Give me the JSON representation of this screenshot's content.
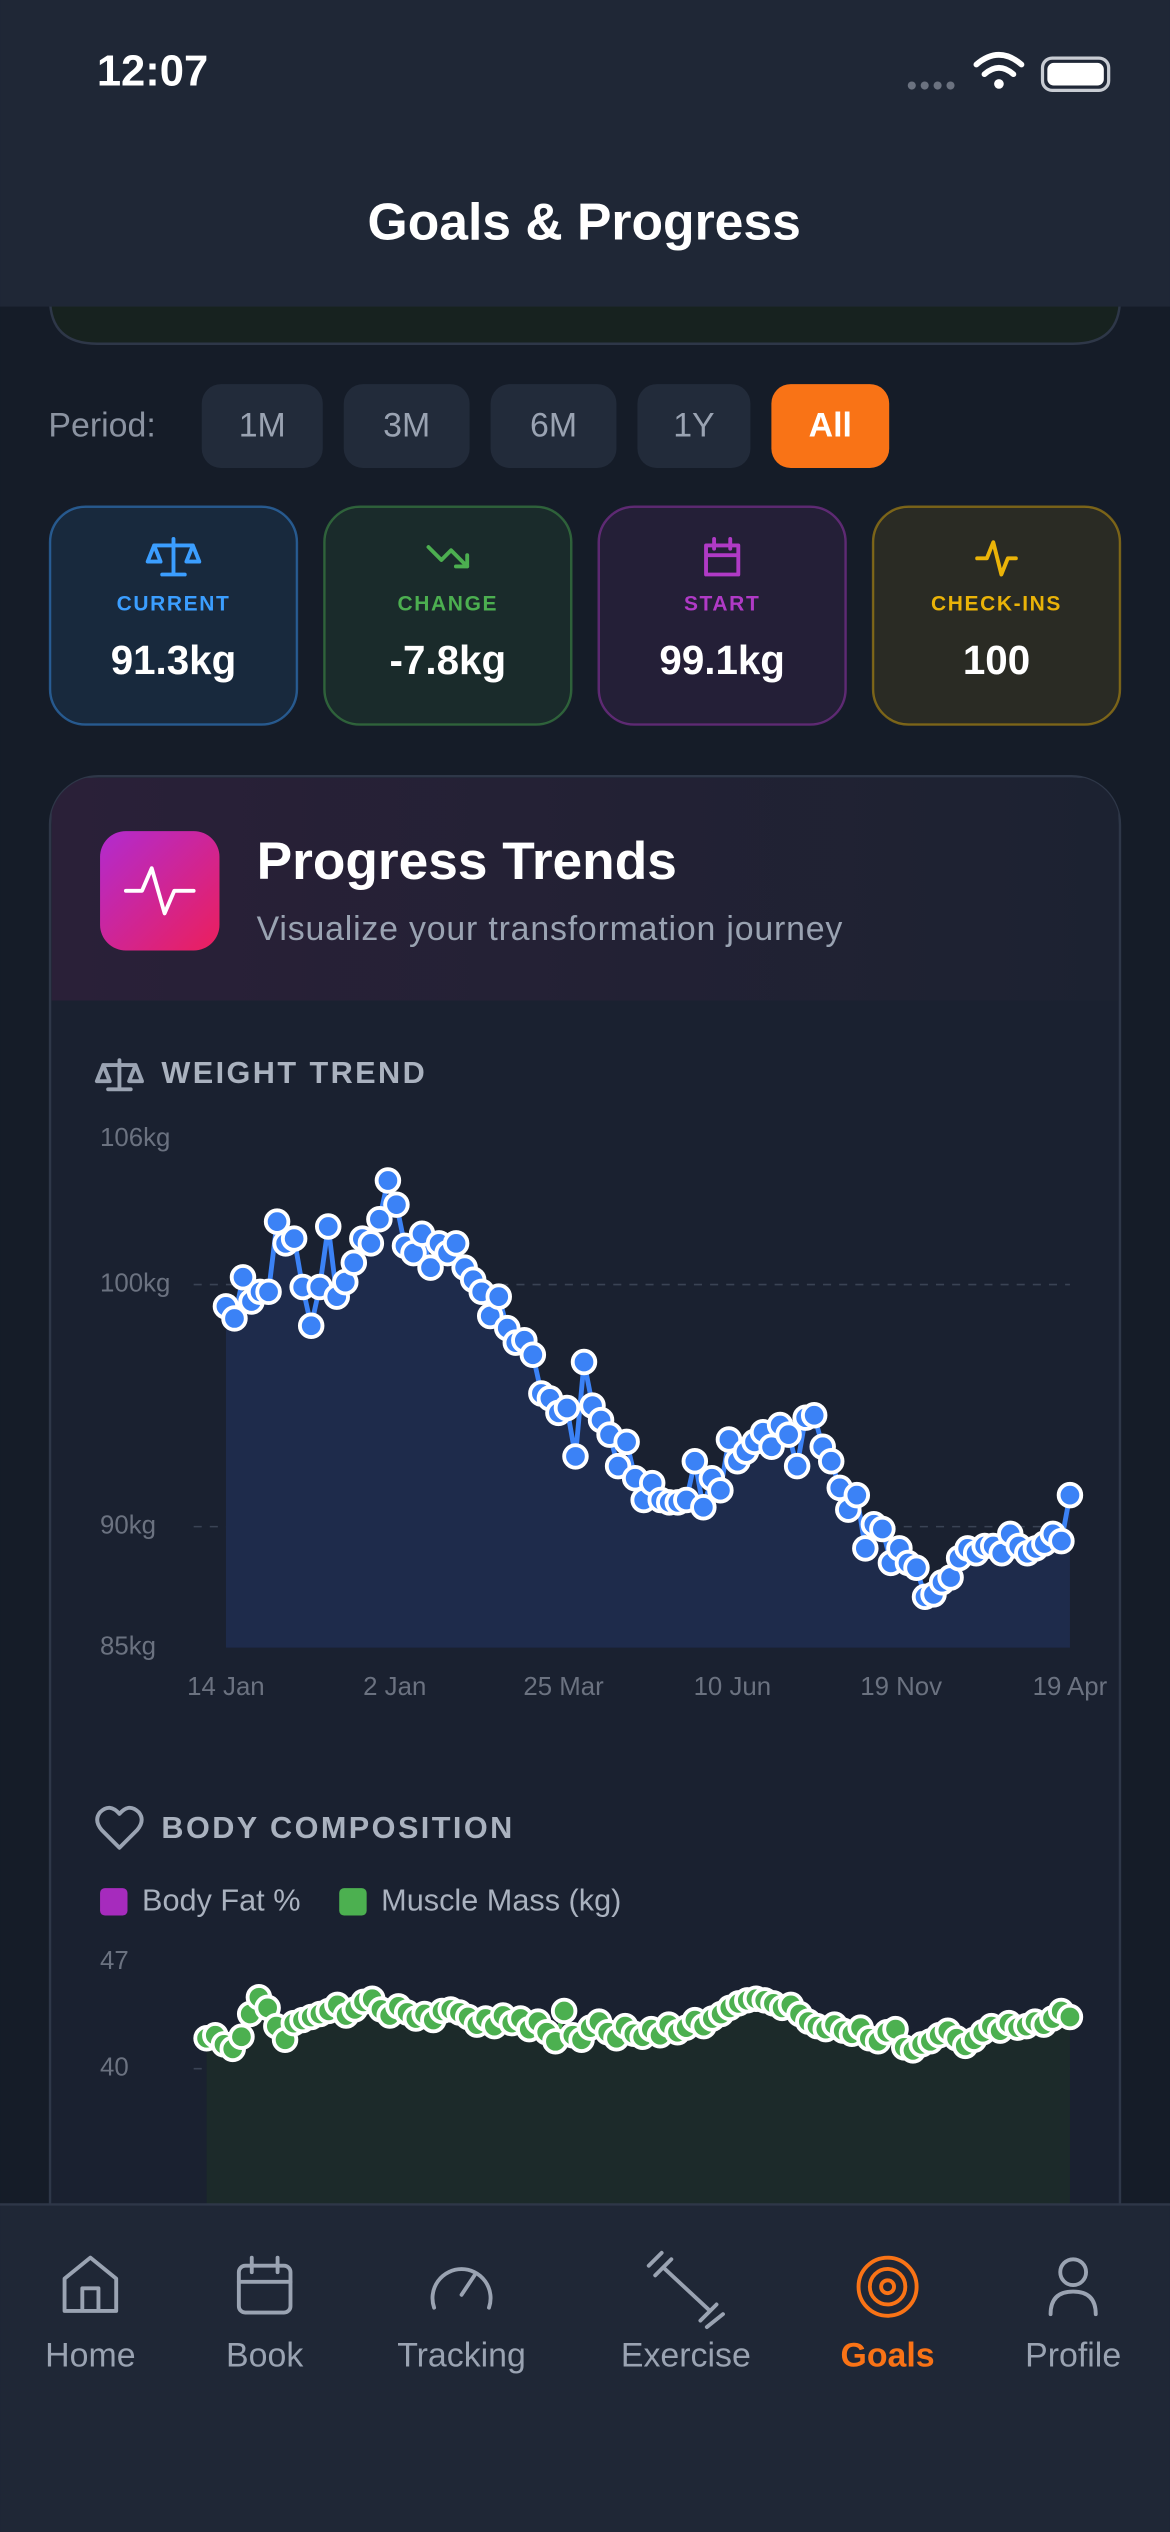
{
  "accent": "#f97316",
  "status_bar": {
    "time": "12:07"
  },
  "header": {
    "title": "Goals & Progress"
  },
  "period": {
    "label": "Period:",
    "options": [
      "1M",
      "3M",
      "6M",
      "1Y",
      "All"
    ],
    "active": 4
  },
  "stats": [
    {
      "label": "CURRENT",
      "value": "91.3kg",
      "color": "#3b9eff"
    },
    {
      "label": "CHANGE",
      "value": "-7.8kg",
      "color": "#4caf50"
    },
    {
      "label": "START",
      "value": "99.1kg",
      "color": "#b03ac6"
    },
    {
      "label": "CHECK-INS",
      "value": "100",
      "color": "#eab308"
    }
  ],
  "trends": {
    "title": "Progress Trends",
    "subtitle": "Visualize your transformation journey"
  },
  "weight_chart": {
    "type": "line",
    "title": "WEIGHT TREND",
    "color": "#3b82f6",
    "x_labels": [
      "14 Jan",
      "2 Jan",
      "25 Mar",
      "10 Jun",
      "19 Nov",
      "19 Apr"
    ],
    "values": [
      99.1,
      98.6,
      100.3,
      99.3,
      99.7,
      99.7,
      102.6,
      101.7,
      101.9,
      99.9,
      98.3,
      99.9,
      102.4,
      99.5,
      100.1,
      100.9,
      101.9,
      101.7,
      102.7,
      104.3,
      103.3,
      101.6,
      101.3,
      102.1,
      100.7,
      101.7,
      101.3,
      101.7,
      100.7,
      100.2,
      99.7,
      98.7,
      99.5,
      98.2,
      97.6,
      97.7,
      97.1,
      95.5,
      95.3,
      94.7,
      94.9,
      92.9,
      96.8,
      95.0,
      94.4,
      93.8,
      92.5,
      93.5,
      92.0,
      91.1,
      91.8,
      91.1,
      91.0,
      91.0,
      91.1,
      92.7,
      90.8,
      92.0,
      91.5,
      93.6,
      92.7,
      93.1,
      93.5,
      93.9,
      93.3,
      94.2,
      93.8,
      92.5,
      94.5,
      94.6,
      93.3,
      92.7,
      91.6,
      90.7,
      91.3,
      89.1,
      90.1,
      89.9,
      88.5,
      89.1,
      88.5,
      88.3,
      87.1,
      87.2,
      87.7,
      87.9,
      88.7,
      89.1,
      88.9,
      89.2,
      89.2,
      88.9,
      89.7,
      89.2,
      88.9,
      89.1,
      89.3,
      89.7,
      89.4,
      91.3
    ],
    "ylim": [
      85,
      106
    ],
    "yticks": [
      {
        "value": 85,
        "label": "85kg"
      },
      {
        "value": 90,
        "label": "90kg"
      },
      {
        "value": 100,
        "label": "100kg"
      },
      {
        "value": 106,
        "label": "106kg"
      }
    ],
    "grid": true
  },
  "composition_chart": {
    "type": "line",
    "title": "BODY COMPOSITION",
    "series": [
      {
        "name": "Body Fat %",
        "color": "#a62bbd"
      },
      {
        "name": "Muscle Mass (kg)",
        "color": "#4cb050",
        "values": [
          42.0,
          42.2,
          41.6,
          41.3,
          42.1,
          43.6,
          44.7,
          44.0,
          42.8,
          41.9,
          43.0,
          43.2,
          43.4,
          43.6,
          43.8,
          44.2,
          43.5,
          43.9,
          44.4,
          44.6,
          43.9,
          43.5,
          44.1,
          43.7,
          43.3,
          43.6,
          43.2,
          43.8,
          43.9,
          43.7,
          43.4,
          42.9,
          43.3,
          42.8,
          43.5,
          43.0,
          43.3,
          42.6,
          43.1,
          42.4,
          41.8,
          43.8,
          42.2,
          41.9,
          42.7,
          43.1,
          42.4,
          42.0,
          42.8,
          42.3,
          42.1,
          42.6,
          42.2,
          42.9,
          42.4,
          42.7,
          43.2,
          42.8,
          43.3,
          43.6,
          44.0,
          44.3,
          44.5,
          44.6,
          44.5,
          44.3,
          44.0,
          44.2,
          43.6,
          43.1,
          42.8,
          42.6,
          42.9,
          42.5,
          42.3,
          42.7,
          42.0,
          41.8,
          42.4,
          42.6,
          41.4,
          41.2,
          41.6,
          41.8,
          42.2,
          42.5,
          42.0,
          41.5,
          41.9,
          42.4,
          42.8,
          42.5,
          43.0,
          42.7,
          42.8,
          43.1,
          42.9,
          43.3,
          43.8,
          43.4
        ]
      }
    ],
    "ylim": [
      30,
      47
    ],
    "yticks": [
      40,
      47
    ],
    "grid": true
  },
  "nav": {
    "items": [
      "Home",
      "Book",
      "Tracking",
      "Exercise",
      "Goals",
      "Profile"
    ],
    "active": 4
  }
}
